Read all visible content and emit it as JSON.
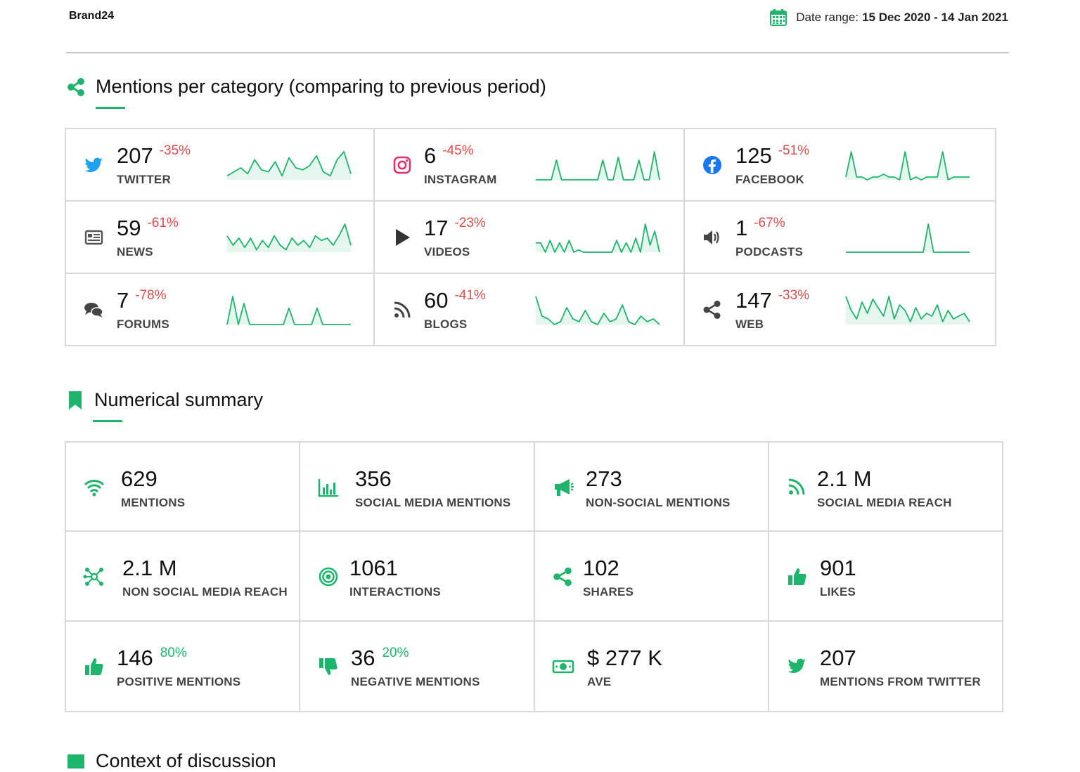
{
  "header": {
    "brand": "Brand24",
    "date_range_label": "Date range:",
    "date_range_value": "15 Dec 2020 - 14 Jan 2021",
    "accent": "#1db56b"
  },
  "categories_section": {
    "title": "Mentions per category (comparing to previous period)",
    "icon": "share-icon",
    "items": [
      {
        "label": "TWITTER",
        "value": "207",
        "change": "-35%",
        "icon": "twitter-icon",
        "icon_color": "#1da1f2",
        "trend": [
          2,
          4,
          6,
          3,
          10,
          5,
          4,
          9,
          2,
          11,
          6,
          5,
          7,
          12,
          4,
          2,
          10,
          14,
          3
        ]
      },
      {
        "label": "INSTAGRAM",
        "value": "6",
        "change": "-45%",
        "icon": "instagram-icon",
        "icon_color": "#e1306c",
        "trend": [
          0,
          0,
          0,
          0,
          7,
          0,
          0,
          0,
          0,
          0,
          0,
          0,
          0,
          7,
          0,
          0,
          8,
          0,
          0,
          0,
          7,
          0,
          0,
          10,
          0
        ]
      },
      {
        "label": "FACEBOOK",
        "value": "125",
        "change": "-51%",
        "icon": "facebook-icon",
        "icon_color": "#1877f2",
        "trend": [
          1,
          10,
          1,
          1,
          0,
          1,
          1,
          2,
          1,
          1,
          0,
          10,
          0,
          1,
          0,
          1,
          1,
          1,
          10,
          0,
          1,
          1,
          1,
          1
        ]
      },
      {
        "label": "NEWS",
        "value": "59",
        "change": "-61%",
        "icon": "news-icon",
        "icon_color": "#555555",
        "trend": [
          7,
          3,
          6,
          2,
          6,
          1,
          5,
          2,
          7,
          3,
          1,
          6,
          3,
          5,
          2,
          7,
          5,
          6,
          3,
          7,
          12,
          3
        ]
      },
      {
        "label": "VIDEOS",
        "value": "17",
        "change": "-23%",
        "icon": "video-play-icon",
        "icon_color": "#333333",
        "trend": [
          4,
          4,
          0,
          5,
          0,
          4,
          0,
          5,
          0,
          1,
          0,
          0,
          0,
          0,
          0,
          0,
          0,
          5,
          0,
          4,
          0,
          6,
          0,
          12,
          3,
          9,
          0
        ]
      },
      {
        "label": "PODCASTS",
        "value": "1",
        "change": "-67%",
        "icon": "podcast-speaker-icon",
        "icon_color": "#444444",
        "trend": [
          0,
          0,
          0,
          0,
          0,
          0,
          0,
          0,
          0,
          0,
          0,
          0,
          0,
          0,
          0,
          0,
          14,
          0,
          0,
          0,
          0,
          0,
          0,
          0,
          0
        ]
      },
      {
        "label": "FORUMS",
        "value": "7",
        "change": "-78%",
        "icon": "forum-chat-icon",
        "icon_color": "#444444",
        "trend": [
          0,
          12,
          0,
          9,
          0,
          0,
          0,
          0,
          0,
          0,
          0,
          7,
          0,
          0,
          0,
          0,
          7,
          0,
          0,
          0,
          0,
          0,
          0
        ]
      },
      {
        "label": "BLOGS",
        "value": "60",
        "change": "-41%",
        "icon": "rss-feed-icon",
        "icon_color": "#444444",
        "trend": [
          10,
          3,
          2,
          0,
          1,
          6,
          2,
          1,
          5,
          1,
          0,
          4,
          1,
          2,
          7,
          1,
          0,
          3,
          1,
          2,
          0
        ]
      },
      {
        "label": "WEB",
        "value": "147",
        "change": "-33%",
        "icon": "share-nodes-icon",
        "icon_color": "#444444",
        "trend": [
          10,
          5,
          2,
          8,
          4,
          9,
          6,
          3,
          10,
          2,
          7,
          5,
          1,
          6,
          2,
          4,
          3,
          7,
          1,
          5,
          2,
          3,
          4,
          1
        ]
      }
    ]
  },
  "summary_section": {
    "title": "Numerical summary",
    "icon": "bookmark-icon",
    "items": [
      {
        "label": "MENTIONS",
        "value": "629",
        "icon": "wifi-signal-icon"
      },
      {
        "label": "SOCIAL MEDIA MENTIONS",
        "value": "356",
        "icon": "bar-chart-icon"
      },
      {
        "label": "NON-SOCIAL MENTIONS",
        "value": "273",
        "icon": "megaphone-icon"
      },
      {
        "label": "SOCIAL MEDIA REACH",
        "value": "2.1 M",
        "icon": "rss-feed-icon"
      },
      {
        "label": "NON SOCIAL MEDIA REACH",
        "value": "2.1 M",
        "icon": "network-nodes-icon"
      },
      {
        "label": "INTERACTIONS",
        "value": "1061",
        "icon": "target-icon"
      },
      {
        "label": "SHARES",
        "value": "102",
        "icon": "share-icon"
      },
      {
        "label": "LIKES",
        "value": "901",
        "icon": "thumbs-up-icon"
      },
      {
        "label": "POSITIVE MENTIONS",
        "value": "146",
        "change": "80%",
        "icon": "thumbs-up-icon"
      },
      {
        "label": "NEGATIVE MENTIONS",
        "value": "36",
        "change": "20%",
        "icon": "thumbs-down-icon"
      },
      {
        "label": "AVE",
        "value": "$ 277 K",
        "icon": "money-bill-icon"
      },
      {
        "label": "MENTIONS FROM TWITTER",
        "value": "207",
        "icon": "twitter-icon"
      }
    ]
  },
  "next_section": {
    "title": "Context of discussion"
  }
}
